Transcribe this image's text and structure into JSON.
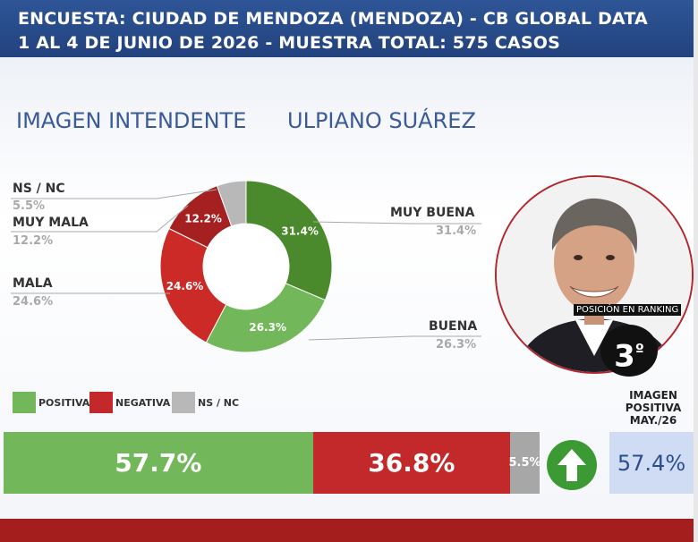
{
  "header": {
    "line1": "ENCUESTA: CIUDAD DE MENDOZA (MENDOZA) - CB GLOBAL DATA",
    "line2": "1 AL 4 DE JUNIO DE 2026 - MUESTRA TOTAL: 575 CASOS"
  },
  "titles": {
    "left": "IMAGEN INTENDENTE",
    "right": "ULPIANO SUÁREZ"
  },
  "colors": {
    "header_blue": "#2e5597",
    "dark_green": "#4a8a2c",
    "light_green": "#72b75a",
    "dark_red": "#a52021",
    "red": "#cc2a26",
    "gray": "#b8b8b8",
    "arrow_green": "#3c9a35"
  },
  "chart_data": [
    {
      "type": "pie",
      "categories": [
        "MUY BUENA",
        "BUENA",
        "MALA",
        "MUY MALA",
        "NS / NC"
      ],
      "values": [
        31.4,
        26.3,
        24.6,
        12.2,
        5.5
      ],
      "value_labels": [
        "31.4%",
        "26.3%",
        "24.6%",
        "12.2%",
        "5.5%"
      ],
      "colors": [
        "#4a8a2c",
        "#72b75a",
        "#cc2a26",
        "#a52021",
        "#b8b8b8"
      ]
    },
    {
      "type": "bar",
      "orientation": "horizontal-stacked",
      "categories": [
        "POSITIVA",
        "NEGATIVA",
        "NS / NC"
      ],
      "values": [
        57.7,
        36.8,
        5.5
      ],
      "value_labels": [
        "57.7%",
        "36.8%",
        "5.5%"
      ],
      "colors": [
        "#72b75a",
        "#c3282a",
        "#a7a7a7"
      ]
    }
  ],
  "legend": [
    {
      "label": "POSITIVA",
      "color": "#72b75a"
    },
    {
      "label": "NEGATIVA",
      "color": "#c3282a"
    },
    {
      "label": "NS / NC",
      "color": "#b8b8b8"
    }
  ],
  "ranking": {
    "label": "POSICIÓN EN RANKING",
    "number": "3",
    "suffix": "º"
  },
  "previous": {
    "title_1": "IMAGEN",
    "title_2": "POSITIVA",
    "title_3": "MAY./26",
    "value": "57.4%",
    "trend_icon": "arrow-up-icon"
  }
}
